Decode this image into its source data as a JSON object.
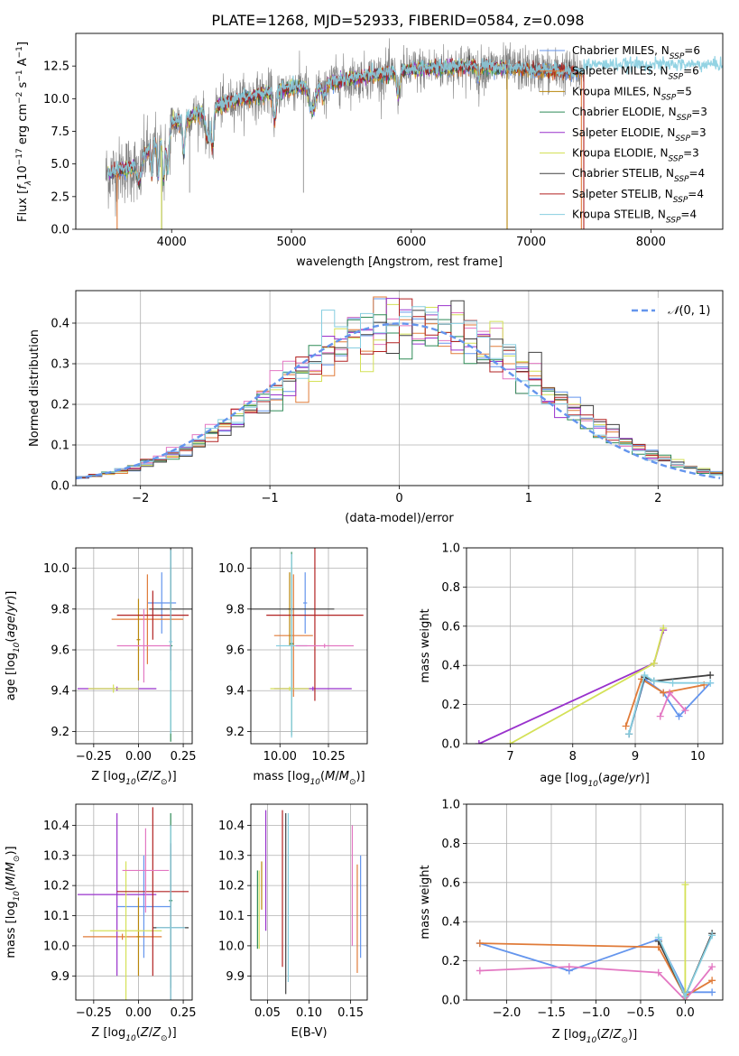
{
  "title": "PLATE=1268, MJD=52933, FIBERID=0584, z=0.098",
  "colors": {
    "Chabrier MILES": "#6495ed",
    "Salpeter MILES": "#e07b39",
    "Kroupa MILES": "#b8860b",
    "Chabrier ELODIE": "#2e8b57",
    "Salpeter ELODIE": "#9932cc",
    "Kroupa ELODIE": "#d4e157",
    "Chabrier STELIB": "#404040",
    "Salpeter STELIB": "#b22222",
    "Kroupa STELIB": "#87cee0",
    "Kroupa MILES residual": "#e377c2",
    "data": "#808080"
  },
  "chart_data": [
    {
      "type": "line",
      "xlabel": "wavelength [Angstrom, rest frame]",
      "ylabel": "Flux [f_λ 10^-17 erg cm^-2 s^-1 A^-1]",
      "xlim": [
        3200,
        8600
      ],
      "ylim": [
        0,
        15
      ],
      "xticks": [
        "4000",
        "5000",
        "6000",
        "7000",
        "8000"
      ],
      "yticks": [
        "0.0",
        "2.5",
        "5.0",
        "7.5",
        "10.0",
        "12.5"
      ],
      "legend_position": "upper right",
      "legend": [
        {
          "label": "Chabrier MILES, N_SSP=6",
          "base": "Chabrier MILES, N",
          "sub": "SSP",
          "suffix": "=6"
        },
        {
          "label": "Salpeter MILES, N_SSP=6",
          "base": "Salpeter MILES, N",
          "sub": "SSP",
          "suffix": "=6"
        },
        {
          "label": "Kroupa MILES, N_SSP=5",
          "base": "Kroupa MILES, N",
          "sub": "SSP",
          "suffix": "=5"
        },
        {
          "label": "Chabrier ELODIE, N_SSP=3",
          "base": "Chabrier ELODIE, N",
          "sub": "SSP",
          "suffix": "=3"
        },
        {
          "label": "Salpeter ELODIE, N_SSP=3",
          "base": "Salpeter ELODIE, N",
          "sub": "SSP",
          "suffix": "=3"
        },
        {
          "label": "Kroupa ELODIE, N_SSP=3",
          "base": "Kroupa ELODIE, N",
          "sub": "SSP",
          "suffix": "=3"
        },
        {
          "label": "Chabrier STELIB, N_SSP=4",
          "base": "Chabrier STELIB, N",
          "sub": "SSP",
          "suffix": "=4"
        },
        {
          "label": "Salpeter STELIB, N_SSP=4",
          "base": "Salpeter STELIB, N",
          "sub": "SSP",
          "suffix": "=4"
        },
        {
          "label": "Kroupa STELIB, N_SSP=4",
          "base": "Kroupa STELIB, N",
          "sub": "SSP",
          "suffix": "=4"
        }
      ],
      "spectrum": {
        "x_start": 3450,
        "x_end": 7440,
        "continuum_points": [
          [
            3450,
            4.2
          ],
          [
            3700,
            4.8
          ],
          [
            3800,
            6.0
          ],
          [
            3950,
            7.2
          ],
          [
            4000,
            8.0
          ],
          [
            4200,
            8.8
          ],
          [
            4500,
            9.8
          ],
          [
            5000,
            10.8
          ],
          [
            5500,
            11.5
          ],
          [
            6000,
            12.2
          ],
          [
            6500,
            12.5
          ],
          [
            7000,
            12.2
          ],
          [
            7440,
            12.0
          ]
        ],
        "model_extension_to": 8600,
        "model_extension_level": 12.5
      }
    },
    {
      "type": "histogram",
      "xlabel": "(data-model)/error",
      "ylabel": "Normed distribution",
      "xlim": [
        -2.5,
        2.5
      ],
      "ylim": [
        0,
        0.48
      ],
      "xticks": [
        "−2",
        "−1",
        "0",
        "1",
        "2"
      ],
      "yticks": [
        "0.0",
        "0.1",
        "0.2",
        "0.3",
        "0.4"
      ],
      "bin_width": 0.1,
      "reference_curve": {
        "label": "𝒩(0, 1)",
        "mean": 0,
        "sigma": 1
      },
      "legend_position": "upper right"
    },
    {
      "type": "scatter",
      "xlabel": "Z [log10(Z/Z☉)]",
      "ylabel": "age [log10(age/yr)]",
      "xlim": [
        -0.35,
        0.3
      ],
      "ylim": [
        9.14,
        10.1
      ],
      "xticks": [
        "−0.25",
        "0.00",
        "0.25"
      ],
      "yticks": [
        "9.2",
        "9.4",
        "9.6",
        "9.8",
        "10.0"
      ],
      "points": [
        {
          "series": "Chabrier MILES",
          "x": 0.13,
          "xerr": 0.08,
          "y": 9.83,
          "yerr": 0.15
        },
        {
          "series": "Salpeter MILES",
          "x": 0.05,
          "xerr": 0.2,
          "y": 9.75,
          "yerr": 0.22
        },
        {
          "series": "Kroupa MILES",
          "x": 0.0,
          "xerr": 0.01,
          "y": 9.65,
          "yerr": 0.2
        },
        {
          "series": "Chabrier ELODIE",
          "x": 0.18,
          "xerr": 0.01,
          "y": 9.62,
          "yerr": 0.47
        },
        {
          "series": "Salpeter ELODIE",
          "x": -0.12,
          "xerr": 0.22,
          "y": 9.41,
          "yerr": 0.01
        },
        {
          "series": "Kroupa ELODIE",
          "x": -0.14,
          "xerr": 0.14,
          "y": 9.41,
          "yerr": 0.02
        },
        {
          "series": "Chabrier STELIB",
          "x": 0.18,
          "xerr": 0.12,
          "y": 9.8,
          "yerr": 0.3
        },
        {
          "series": "Salpeter STELIB",
          "x": 0.08,
          "xerr": 0.2,
          "y": 9.77,
          "yerr": 0.12
        },
        {
          "series": "Kroupa STELIB",
          "x": 0.18,
          "xerr": 0.01,
          "y": 9.64,
          "yerr": 0.45
        },
        {
          "series": "Kroupa MILES residual",
          "x": 0.03,
          "xerr": 0.15,
          "y": 9.62,
          "yerr": 0.18
        }
      ]
    },
    {
      "type": "scatter",
      "xlabel": "mass [log10(M/M☉)]",
      "ylabel": "",
      "xlim": [
        9.85,
        10.45
      ],
      "ylim": [
        9.14,
        10.1
      ],
      "xticks": [
        "10.00",
        "10.25"
      ],
      "yticks": [
        "9.2",
        "9.4",
        "9.6",
        "9.8",
        "10.0"
      ],
      "points": [
        {
          "series": "Chabrier MILES",
          "x": 10.13,
          "xerr": 0.01,
          "y": 9.83,
          "yerr": 0.15
        },
        {
          "series": "Salpeter MILES",
          "x": 10.07,
          "xerr": 0.1,
          "y": 9.67,
          "yerr": 0.3
        },
        {
          "series": "Kroupa MILES",
          "x": 10.05,
          "xerr": 0.01,
          "y": 9.8,
          "yerr": 0.18
        },
        {
          "series": "Chabrier ELODIE",
          "x": 10.06,
          "xerr": 0.01,
          "y": 9.63,
          "yerr": 0.45
        },
        {
          "series": "Salpeter ELODIE",
          "x": 10.17,
          "xerr": 0.2,
          "y": 9.41,
          "yerr": 0.01
        },
        {
          "series": "Kroupa ELODIE",
          "x": 10.05,
          "xerr": 0.1,
          "y": 9.41,
          "yerr": 0.01
        },
        {
          "series": "Chabrier STELIB",
          "x": 10.06,
          "xerr": 0.22,
          "y": 9.8,
          "yerr": 0.01
        },
        {
          "series": "Salpeter STELIB",
          "x": 10.18,
          "xerr": 0.25,
          "y": 9.77,
          "yerr": 0.42
        },
        {
          "series": "Kroupa STELIB",
          "x": 10.06,
          "xerr": 0.08,
          "y": 9.62,
          "yerr": 0.45
        },
        {
          "series": "Kroupa MILES residual",
          "x": 10.23,
          "xerr": 0.15,
          "y": 9.62,
          "yerr": 0.01
        }
      ]
    },
    {
      "type": "line",
      "xlabel": "age [log10(age/yr)]",
      "ylabel": "mass weight",
      "xlim": [
        6.3,
        10.4
      ],
      "ylim": [
        0,
        1
      ],
      "xticks": [
        "7",
        "8",
        "9",
        "10"
      ],
      "yticks": [
        "0.0",
        "0.2",
        "0.4",
        "0.6",
        "0.8",
        "1.0"
      ],
      "series": [
        {
          "name": "Chabrier MILES",
          "x": [
            8.9,
            9.15,
            9.45,
            9.7,
            10.2
          ],
          "y": [
            0.05,
            0.33,
            0.26,
            0.14,
            0.31
          ]
        },
        {
          "name": "Salpeter MILES",
          "x": [
            8.85,
            9.1,
            9.45,
            10.1
          ],
          "y": [
            0.09,
            0.33,
            0.26,
            0.3
          ]
        },
        {
          "name": "Kroupa MILES residual",
          "x": [
            9.4,
            9.55,
            9.8
          ],
          "y": [
            0.14,
            0.26,
            0.17
          ]
        },
        {
          "name": "Salpeter ELODIE",
          "x": [
            6.5,
            9.3,
            9.45
          ],
          "y": [
            0.0,
            0.41,
            0.58
          ]
        },
        {
          "name": "Kroupa ELODIE",
          "x": [
            7.0,
            9.3,
            9.45
          ],
          "y": [
            0.0,
            0.41,
            0.59
          ]
        },
        {
          "name": "Chabrier STELIB",
          "x": [
            8.9,
            9.15,
            9.3,
            10.2
          ],
          "y": [
            0.05,
            0.34,
            0.32,
            0.35
          ]
        },
        {
          "name": "Kroupa STELIB",
          "x": [
            8.9,
            9.15,
            9.3,
            9.6,
            10.2
          ],
          "y": [
            0.05,
            0.35,
            0.32,
            0.31,
            0.31
          ]
        }
      ]
    },
    {
      "type": "scatter",
      "xlabel": "Z [log10(Z/Z☉)]",
      "ylabel": "mass [log10(M/M☉)]",
      "xlim": [
        -0.35,
        0.3
      ],
      "ylim": [
        9.82,
        10.47
      ],
      "xticks": [
        "−0.25",
        "0.00",
        "0.25"
      ],
      "yticks": [
        "9.9",
        "10.0",
        "10.1",
        "10.2",
        "10.3",
        "10.4"
      ],
      "points": [
        {
          "series": "Chabrier MILES",
          "x": 0.03,
          "xerr": 0.15,
          "y": 10.13,
          "yerr": 0.17
        },
        {
          "series": "Salpeter MILES",
          "x": -0.09,
          "xerr": 0.22,
          "y": 10.03,
          "yerr": 0.01
        },
        {
          "series": "Kroupa MILES",
          "x": 0.0,
          "xerr": 0.01,
          "y": 10.03,
          "yerr": 0.13
        },
        {
          "series": "Chabrier ELODIE",
          "x": 0.18,
          "xerr": 0.01,
          "y": 10.15,
          "yerr": 0.29
        },
        {
          "series": "Salpeter ELODIE",
          "x": -0.12,
          "xerr": 0.22,
          "y": 10.17,
          "yerr": 0.27
        },
        {
          "series": "Kroupa ELODIE",
          "x": -0.07,
          "xerr": 0.2,
          "y": 10.05,
          "yerr": 0.23
        },
        {
          "series": "Chabrier STELIB",
          "x": 0.18,
          "xerr": 0.1,
          "y": 10.06,
          "yerr": 0.28
        },
        {
          "series": "Salpeter STELIB",
          "x": 0.08,
          "xerr": 0.2,
          "y": 10.18,
          "yerr": 0.28
        },
        {
          "series": "Kroupa STELIB",
          "x": 0.18,
          "xerr": 0.08,
          "y": 10.06,
          "yerr": 0.34
        },
        {
          "series": "Kroupa MILES residual",
          "x": 0.04,
          "xerr": 0.13,
          "y": 10.25,
          "yerr": 0.14
        }
      ]
    },
    {
      "type": "scatter",
      "xlabel": "E(B-V)",
      "ylabel": "",
      "xlim": [
        0.03,
        0.17
      ],
      "ylim": [
        9.82,
        10.47
      ],
      "xticks": [
        "0.05",
        "0.10",
        "0.15"
      ],
      "yticks": [
        "9.9",
        "10.0",
        "10.1",
        "10.2",
        "10.3",
        "10.4"
      ],
      "points": [
        {
          "series": "Chabrier MILES",
          "x": 0.162,
          "y": 10.13,
          "yerr": 0.17
        },
        {
          "series": "Salpeter MILES",
          "x": 0.158,
          "y": 10.09,
          "yerr": 0.18
        },
        {
          "series": "Kroupa MILES",
          "x": 0.043,
          "y": 10.2,
          "yerr": 0.08
        },
        {
          "series": "Chabrier ELODIE",
          "x": 0.038,
          "y": 10.12,
          "yerr": 0.13
        },
        {
          "series": "Salpeter ELODIE",
          "x": 0.048,
          "y": 10.25,
          "yerr": 0.2
        },
        {
          "series": "Kroupa ELODIE",
          "x": 0.04,
          "y": 10.12,
          "yerr": 0.13
        },
        {
          "series": "Chabrier STELIB",
          "x": 0.072,
          "y": 10.14,
          "yerr": 0.3
        },
        {
          "series": "Salpeter STELIB",
          "x": 0.068,
          "y": 10.19,
          "yerr": 0.26
        },
        {
          "series": "Kroupa STELIB",
          "x": 0.075,
          "y": 10.16,
          "yerr": 0.28
        },
        {
          "series": "Kroupa MILES residual",
          "x": 0.152,
          "y": 10.2,
          "yerr": 0.2
        }
      ]
    },
    {
      "type": "line",
      "xlabel": "Z [log10(Z/Z☉)]",
      "ylabel": "mass weight",
      "xlim": [
        -2.45,
        0.42
      ],
      "ylim": [
        0,
        1
      ],
      "xticks": [
        "−2.0",
        "−1.5",
        "−1.0",
        "−0.5",
        "0.0"
      ],
      "yticks": [
        "0.0",
        "0.2",
        "0.4",
        "0.6",
        "0.8",
        "1.0"
      ],
      "series": [
        {
          "name": "Chabrier MILES",
          "x": [
            -2.3,
            -1.3,
            -0.3,
            0.0,
            0.3
          ],
          "y": [
            0.29,
            0.15,
            0.31,
            0.04,
            0.04
          ]
        },
        {
          "name": "Salpeter MILES",
          "x": [
            -2.3,
            -0.3,
            0.0,
            0.3
          ],
          "y": [
            0.29,
            0.27,
            0.02,
            0.1
          ]
        },
        {
          "name": "Kroupa MILES residual",
          "x": [
            -2.3,
            -1.3,
            -0.3,
            0.0,
            0.3
          ],
          "y": [
            0.15,
            0.17,
            0.14,
            0.0,
            0.17
          ]
        },
        {
          "name": "Kroupa ELODIE",
          "x": [
            0.0,
            0.0
          ],
          "y": [
            0.0,
            0.59
          ]
        },
        {
          "name": "Chabrier STELIB",
          "x": [
            -0.3,
            0.0,
            0.3
          ],
          "y": [
            0.3,
            0.02,
            0.34
          ]
        },
        {
          "name": "Kroupa STELIB",
          "x": [
            -0.3,
            0.0,
            0.3
          ],
          "y": [
            0.32,
            0.02,
            0.33
          ]
        }
      ]
    }
  ]
}
